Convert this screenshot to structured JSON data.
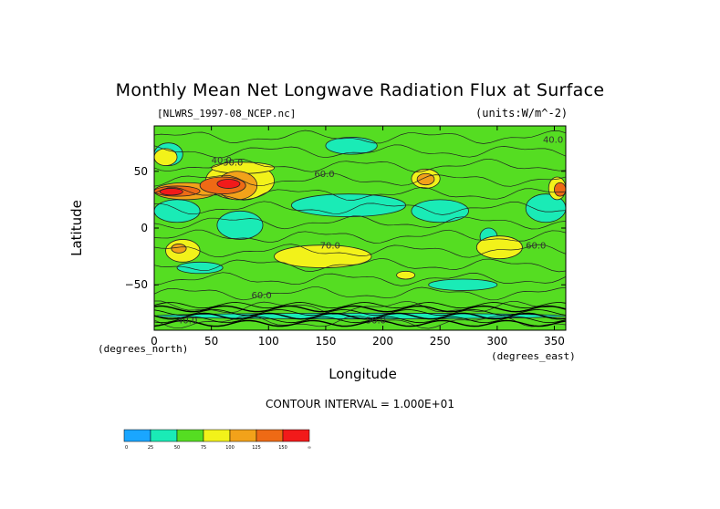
{
  "title": "Monthly Mean Net Longwave Radiation Flux at Surface",
  "file_label": "[NLWRS_1997-08_NCEP.nc]",
  "units_label": "(units:W/m^-2)",
  "axis_labels": {
    "y": "Latitude",
    "x": "Longitude",
    "x_sub": "(degrees_north)",
    "x_sub_right": "(degrees_east)"
  },
  "contour_interval": "CONTOUR INTERVAL = 1.000E+01",
  "chart_data": {
    "type": "heatmap",
    "title": "Monthly Mean Net Longwave Radiation Flux at Surface",
    "xlabel": "Longitude",
    "ylabel": "Latitude",
    "xlim": [
      0,
      360
    ],
    "ylim": [
      -90,
      90
    ],
    "x_ticks": [
      0,
      50,
      100,
      150,
      200,
      250,
      300,
      350
    ],
    "y_ticks": [
      50,
      0,
      -50
    ],
    "background_color": "#55dd22",
    "contour_labels": [
      "40.0",
      "60.0",
      "70.0",
      "60.0",
      "60.0",
      "40.0",
      "50.0",
      "40.0",
      "30.0"
    ],
    "colorbar": {
      "bins": [
        {
          "label": "0",
          "color": "#1aa6ff"
        },
        {
          "label": "25",
          "color": "#1aebb6"
        },
        {
          "label": "50",
          "color": "#55dd22"
        },
        {
          "label": "75",
          "color": "#f2f21a"
        },
        {
          "label": "100",
          "color": "#f2a21a"
        },
        {
          "label": "125",
          "color": "#ee6a15"
        },
        {
          "label": "150",
          "color": "#f21a1a"
        }
      ],
      "end_label": "∞"
    },
    "regions": [
      {
        "level": 1,
        "lon": [
          120,
          220
        ],
        "lat": [
          10,
          30
        ]
      },
      {
        "level": 1,
        "lon": [
          0,
          40
        ],
        "lat": [
          5,
          25
        ]
      },
      {
        "level": 1,
        "lon": [
          225,
          275
        ],
        "lat": [
          5,
          25
        ]
      },
      {
        "level": 1,
        "lon": [
          55,
          95
        ],
        "lat": [
          -10,
          15
        ]
      },
      {
        "level": 1,
        "lon": [
          0,
          25
        ],
        "lat": [
          55,
          75
        ]
      },
      {
        "level": 1,
        "lon": [
          150,
          195
        ],
        "lat": [
          65,
          80
        ]
      },
      {
        "level": 1,
        "lon": [
          325,
          360
        ],
        "lat": [
          5,
          30
        ]
      },
      {
        "level": 1,
        "lon": [
          240,
          300
        ],
        "lat": [
          -55,
          -45
        ]
      },
      {
        "level": 1,
        "lon": [
          285,
          300
        ],
        "lat": [
          -15,
          0
        ]
      },
      {
        "level": 1,
        "lon": [
          0,
          360
        ],
        "lat": [
          -80,
          -75
        ]
      },
      {
        "level": 1,
        "lon": [
          20,
          60
        ],
        "lat": [
          -40,
          -30
        ]
      },
      {
        "level": 3,
        "lon": [
          105,
          190
        ],
        "lat": [
          -35,
          -15
        ]
      },
      {
        "level": 3,
        "lon": [
          212,
          228
        ],
        "lat": [
          -45,
          -38
        ]
      },
      {
        "level": 3,
        "lon": [
          10,
          40
        ],
        "lat": [
          -30,
          -10
        ]
      },
      {
        "level": 3,
        "lon": [
          225,
          250
        ],
        "lat": [
          35,
          52
        ]
      },
      {
        "level": 3,
        "lon": [
          282,
          322
        ],
        "lat": [
          -27,
          -7
        ]
      },
      {
        "level": 3,
        "lon": [
          0,
          20
        ],
        "lat": [
          55,
          70
        ]
      },
      {
        "level": 3,
        "lon": [
          45,
          105
        ],
        "lat": [
          25,
          58
        ]
      },
      {
        "level": 3,
        "lon": [
          50,
          105
        ],
        "lat": [
          48,
          58
        ]
      },
      {
        "level": 4,
        "lon": [
          0,
          55
        ],
        "lat": [
          25,
          40
        ]
      },
      {
        "level": 4,
        "lon": [
          55,
          90
        ],
        "lat": [
          25,
          50
        ]
      },
      {
        "level": 4,
        "lon": [
          230,
          245
        ],
        "lat": [
          38,
          48
        ]
      },
      {
        "level": 4,
        "lon": [
          15,
          28
        ],
        "lat": [
          -22,
          -14
        ]
      },
      {
        "level": 5,
        "lon": [
          0,
          40
        ],
        "lat": [
          28,
          37
        ]
      },
      {
        "level": 5,
        "lon": [
          40,
          80
        ],
        "lat": [
          30,
          45
        ]
      },
      {
        "level": 6,
        "lon": [
          55,
          75
        ],
        "lat": [
          35,
          43
        ]
      },
      {
        "level": 6,
        "lon": [
          5,
          25
        ],
        "lat": [
          29,
          35
        ]
      },
      {
        "level": 3,
        "lon": [
          345,
          360
        ],
        "lat": [
          25,
          45
        ]
      },
      {
        "level": 5,
        "lon": [
          350,
          360
        ],
        "lat": [
          28,
          40
        ]
      }
    ]
  }
}
